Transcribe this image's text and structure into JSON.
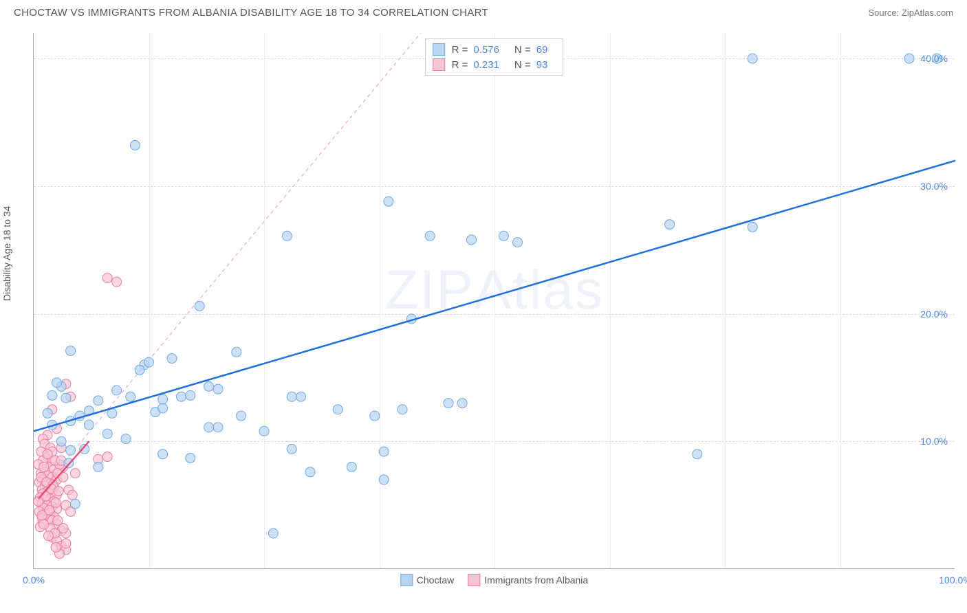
{
  "header": {
    "title": "CHOCTAW VS IMMIGRANTS FROM ALBANIA DISABILITY AGE 18 TO 34 CORRELATION CHART",
    "source": "Source: ZipAtlas.com"
  },
  "watermark": {
    "part1": "ZIP",
    "part2": "Atlas"
  },
  "chart": {
    "type": "scatter",
    "ylabel": "Disability Age 18 to 34",
    "xlim": [
      0,
      100
    ],
    "ylim": [
      0,
      42
    ],
    "background_color": "#ffffff",
    "grid_color": "#dddddd",
    "grid_v_color": "#eeeeee",
    "axis_color": "#aaaaaa",
    "tick_color": "#4a86e8",
    "label_color": "#555555",
    "label_fontsize": 14,
    "y_ticks": [
      {
        "value": 10,
        "label": "10.0%"
      },
      {
        "value": 20,
        "label": "20.0%"
      },
      {
        "value": 30,
        "label": "30.0%"
      },
      {
        "value": 40,
        "label": "40.0%"
      }
    ],
    "x_ticks": [
      {
        "value": 0,
        "label": "0.0%"
      },
      {
        "value": 100,
        "label": "100.0%"
      }
    ],
    "x_grid_positions": [
      12.5,
      25,
      37.5,
      50,
      62.5,
      75,
      87.5
    ],
    "series": [
      {
        "name": "Choctaw",
        "marker_color_fill": "#b8d4f0",
        "marker_color_stroke": "#6fa8e8",
        "marker_radius": 7,
        "marker_opacity": 0.7,
        "line_color": "#1f6fe0",
        "line_width": 2.5,
        "trend_line": {
          "x1": 0,
          "y1": 10.8,
          "x2": 100,
          "y2": 32.0
        },
        "reference_line": {
          "x1": 0,
          "y1": 5.5,
          "x2": 42,
          "y2": 42,
          "color": "#f5b8c8",
          "dash": "5,5"
        },
        "R": "0.576",
        "N": "69",
        "points": [
          [
            11,
            33.2
          ],
          [
            78,
            40.0
          ],
          [
            98,
            40.0
          ],
          [
            72,
            9.0
          ],
          [
            78,
            26.8
          ],
          [
            69,
            27.0
          ],
          [
            95,
            40.0
          ],
          [
            38.5,
            28.8
          ],
          [
            45,
            13.0
          ],
          [
            46.5,
            13.0
          ],
          [
            16,
            13.5
          ],
          [
            17,
            13.6
          ],
          [
            43,
            26.1
          ],
          [
            47.5,
            25.8
          ],
          [
            52.5,
            25.6
          ],
          [
            40,
            12.5
          ],
          [
            38,
            9.2
          ],
          [
            34.5,
            8.0
          ],
          [
            30,
            7.6
          ],
          [
            26,
            2.8
          ],
          [
            41,
            19.6
          ],
          [
            37,
            12.0
          ],
          [
            33,
            12.5
          ],
          [
            29,
            13.5
          ],
          [
            28,
            13.5
          ],
          [
            25,
            10.8
          ],
          [
            22,
            17.0
          ],
          [
            20,
            11.1
          ],
          [
            19,
            11.1
          ],
          [
            19,
            14.3
          ],
          [
            13.2,
            12.3
          ],
          [
            18,
            20.6
          ],
          [
            28,
            9.4
          ],
          [
            17,
            8.7
          ],
          [
            14,
            9.0
          ],
          [
            15,
            16.5
          ],
          [
            12,
            16.0
          ],
          [
            4,
            17.1
          ],
          [
            10,
            10.2
          ],
          [
            8,
            10.6
          ],
          [
            6,
            12.4
          ],
          [
            5,
            12.0
          ],
          [
            3.5,
            13.4
          ],
          [
            3,
            14.3
          ],
          [
            2,
            13.6
          ],
          [
            2.5,
            14.6
          ],
          [
            5.5,
            9.4
          ],
          [
            4.5,
            5.1
          ],
          [
            51,
            26.1
          ],
          [
            27.5,
            26.1
          ],
          [
            38,
            7.0
          ],
          [
            9,
            14.0
          ],
          [
            4,
            11.6
          ],
          [
            7,
            13.2
          ],
          [
            6,
            11.3
          ],
          [
            2,
            11.3
          ],
          [
            1.5,
            12.2
          ],
          [
            3,
            10.0
          ],
          [
            10.5,
            13.5
          ],
          [
            11.5,
            15.6
          ],
          [
            12.5,
            16.2
          ],
          [
            14,
            12.6
          ],
          [
            4,
            9.3
          ],
          [
            7,
            8.0
          ],
          [
            14,
            13.3
          ],
          [
            3.8,
            8.3
          ],
          [
            8.5,
            12.2
          ],
          [
            22.5,
            12.0
          ],
          [
            20,
            14.1
          ]
        ]
      },
      {
        "name": "Immigrants from Albania",
        "marker_color_fill": "#f7c6d4",
        "marker_color_stroke": "#ec7ba0",
        "marker_radius": 7,
        "marker_opacity": 0.7,
        "line_color": "#e84a7a",
        "line_width": 2.5,
        "trend_line": {
          "x1": 0.5,
          "y1": 5.5,
          "x2": 6,
          "y2": 10.0
        },
        "R": "0.231",
        "N": "93",
        "points": [
          [
            8,
            22.8
          ],
          [
            9,
            22.5
          ],
          [
            3.5,
            14.5
          ],
          [
            4,
            13.5
          ],
          [
            2,
            12.5
          ],
          [
            2.5,
            11.0
          ],
          [
            1.5,
            10.5
          ],
          [
            1,
            10.2
          ],
          [
            1.2,
            9.8
          ],
          [
            1.8,
            9.5
          ],
          [
            0.8,
            9.2
          ],
          [
            1.5,
            8.8
          ],
          [
            2,
            8.5
          ],
          [
            1,
            8.5
          ],
          [
            0.5,
            8.2
          ],
          [
            1.8,
            8.0
          ],
          [
            2.2,
            7.8
          ],
          [
            1.2,
            7.6
          ],
          [
            0.8,
            7.5
          ],
          [
            1.5,
            7.3
          ],
          [
            2,
            7.2
          ],
          [
            1,
            7.0
          ],
          [
            2.5,
            7.0
          ],
          [
            0.6,
            6.8
          ],
          [
            1.8,
            6.7
          ],
          [
            1.2,
            6.5
          ],
          [
            2.2,
            6.4
          ],
          [
            0.9,
            6.2
          ],
          [
            1.5,
            6.1
          ],
          [
            2,
            6.0
          ],
          [
            1,
            5.9
          ],
          [
            2.5,
            5.8
          ],
          [
            0.7,
            5.6
          ],
          [
            1.8,
            5.5
          ],
          [
            1.2,
            5.4
          ],
          [
            2.2,
            5.3
          ],
          [
            0.9,
            5.1
          ],
          [
            1.5,
            5.0
          ],
          [
            2,
            4.9
          ],
          [
            1,
            4.8
          ],
          [
            2.5,
            4.7
          ],
          [
            0.6,
            4.5
          ],
          [
            1.8,
            4.4
          ],
          [
            1.2,
            4.3
          ],
          [
            2.2,
            4.1
          ],
          [
            0.9,
            4.0
          ],
          [
            1.5,
            3.9
          ],
          [
            2,
            3.8
          ],
          [
            1,
            3.6
          ],
          [
            2.5,
            3.5
          ],
          [
            0.7,
            3.3
          ],
          [
            1.8,
            3.2
          ],
          [
            3,
            3.0
          ],
          [
            3.5,
            2.8
          ],
          [
            2,
            2.5
          ],
          [
            2.5,
            2.2
          ],
          [
            3,
            1.8
          ],
          [
            3.5,
            1.5
          ],
          [
            2.8,
            1.2
          ],
          [
            8,
            8.8
          ],
          [
            3,
            9.5
          ],
          [
            3.2,
            8.0
          ],
          [
            2,
            9.2
          ],
          [
            2.8,
            8.2
          ],
          [
            1.5,
            9.0
          ],
          [
            2.3,
            8.5
          ],
          [
            1.1,
            8.0
          ],
          [
            2.6,
            7.5
          ],
          [
            3.2,
            7.2
          ],
          [
            0.8,
            7.2
          ],
          [
            1.4,
            6.8
          ],
          [
            2.1,
            6.6
          ],
          [
            1.9,
            6.3
          ],
          [
            2.7,
            6.1
          ],
          [
            1.3,
            5.7
          ],
          [
            0.5,
            5.3
          ],
          [
            2.4,
            5.2
          ],
          [
            1.7,
            4.6
          ],
          [
            0.9,
            4.2
          ],
          [
            2.6,
            3.8
          ],
          [
            1.1,
            3.5
          ],
          [
            3.2,
            3.2
          ],
          [
            2.3,
            2.8
          ],
          [
            1.6,
            2.6
          ],
          [
            3.5,
            2.0
          ],
          [
            2.4,
            1.7
          ],
          [
            3,
            8.5
          ],
          [
            4.5,
            7.5
          ],
          [
            3.8,
            6.2
          ],
          [
            4.2,
            5.8
          ],
          [
            3.5,
            5.0
          ],
          [
            4,
            4.5
          ],
          [
            7,
            8.6
          ]
        ]
      }
    ],
    "legend_swatches": {
      "blue_fill": "#b8d4f0",
      "blue_stroke": "#6fa8e8",
      "pink_fill": "#f7c6d4",
      "pink_stroke": "#ec7ba0"
    }
  }
}
